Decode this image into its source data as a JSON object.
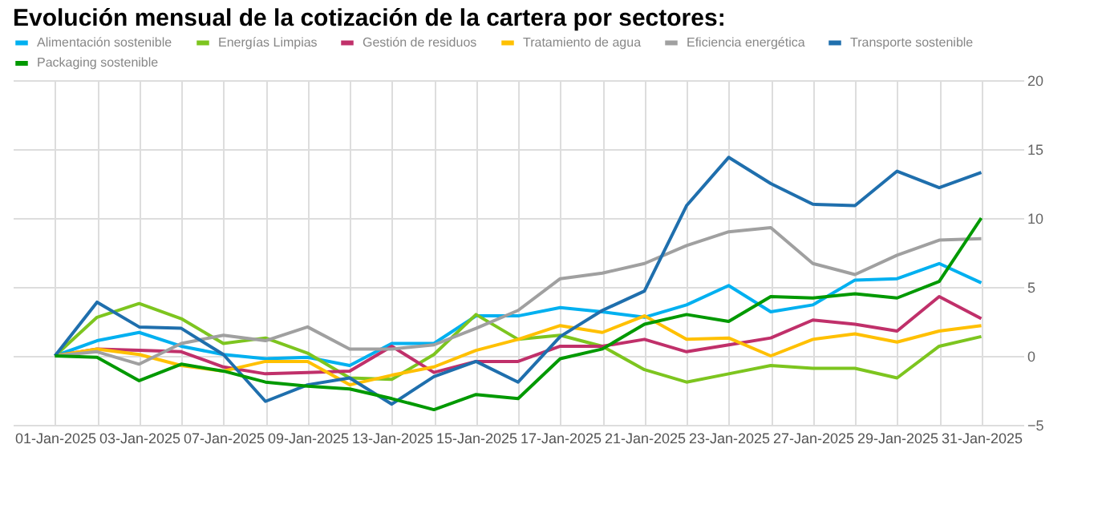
{
  "chart_data": {
    "type": "line",
    "title": "Evolución mensual de la cotización de la cartera por sectores:",
    "categories": [
      "01-Jan-2025",
      null,
      "03-Jan-2025",
      null,
      "07-Jan-2025",
      null,
      "09-Jan-2025",
      null,
      "13-Jan-2025",
      null,
      "15-Jan-2025",
      null,
      "17-Jan-2025",
      null,
      "21-Jan-2025",
      null,
      "23-Jan-2025",
      null,
      "27-Jan-2025",
      null,
      "29-Jan-2025",
      null,
      "31-Jan-2025"
    ],
    "series": [
      {
        "name": "Alimentación sostenible",
        "color": "#00b0f0",
        "values": [
          0,
          1.1,
          1.7,
          0.7,
          0.1,
          -0.2,
          -0.1,
          -0.7,
          0.9,
          0.9,
          2.9,
          2.9,
          3.5,
          3.2,
          2.8,
          3.7,
          5.1,
          3.2,
          3.7,
          5.5,
          5.6,
          6.7,
          5.3
        ]
      },
      {
        "name": "Energías Limpias",
        "color": "#7dc51f",
        "values": [
          0,
          2.8,
          3.8,
          2.7,
          0.9,
          1.3,
          0.2,
          -1.6,
          -1.7,
          0.1,
          3.0,
          1.2,
          1.5,
          0.7,
          -1.0,
          -1.9,
          -1.3,
          -0.7,
          -0.9,
          -0.9,
          -1.6,
          0.7,
          1.4
        ]
      },
      {
        "name": "Gestión de residuos",
        "color": "#c0306a",
        "values": [
          0,
          0.5,
          0.4,
          0.3,
          -0.8,
          -1.3,
          -1.2,
          -1.1,
          0.7,
          -1.2,
          -0.4,
          -0.4,
          0.7,
          0.7,
          1.2,
          0.3,
          0.8,
          1.3,
          2.6,
          2.3,
          1.8,
          4.3,
          2.7
        ]
      },
      {
        "name": "Tratamiento de agua",
        "color": "#ffc000",
        "values": [
          0,
          0.5,
          0.1,
          -0.7,
          -1.1,
          -0.4,
          -0.4,
          -2.1,
          -1.4,
          -0.8,
          0.4,
          1.2,
          2.2,
          1.7,
          2.9,
          1.2,
          1.3,
          0.0,
          1.2,
          1.6,
          1.0,
          1.8,
          2.2
        ]
      },
      {
        "name": "Eficiencia energética",
        "color": "#a0a0a0",
        "values": [
          0,
          0.3,
          -0.6,
          0.9,
          1.5,
          1.1,
          2.1,
          0.5,
          0.5,
          0.8,
          2.0,
          3.3,
          5.6,
          6.0,
          6.7,
          8.0,
          9.0,
          9.3,
          6.7,
          5.9,
          7.3,
          8.4,
          8.5
        ]
      },
      {
        "name": "Transporte sostenible",
        "color": "#1f6fad",
        "values": [
          0,
          3.9,
          2.1,
          2.0,
          0.1,
          -3.3,
          -2.1,
          -1.6,
          -3.5,
          -1.5,
          -0.4,
          -1.9,
          1.4,
          3.3,
          4.7,
          10.9,
          14.4,
          12.5,
          11.0,
          10.9,
          13.4,
          12.2,
          13.3
        ]
      },
      {
        "name": "Packaging sostenible",
        "color": "#009900",
        "values": [
          0,
          -0.1,
          -1.8,
          -0.6,
          -1.1,
          -1.9,
          -2.2,
          -2.4,
          -3.1,
          -3.9,
          -2.8,
          -3.1,
          -0.2,
          0.5,
          2.3,
          3.0,
          2.5,
          4.3,
          4.2,
          4.5,
          4.2,
          5.4,
          10.0
        ]
      }
    ],
    "ylim": [
      -5,
      20
    ],
    "yticks": [
      -5,
      0,
      5,
      10,
      15,
      20
    ],
    "grid": true,
    "legend": "top",
    "marker": "none",
    "line_style": "solid"
  }
}
